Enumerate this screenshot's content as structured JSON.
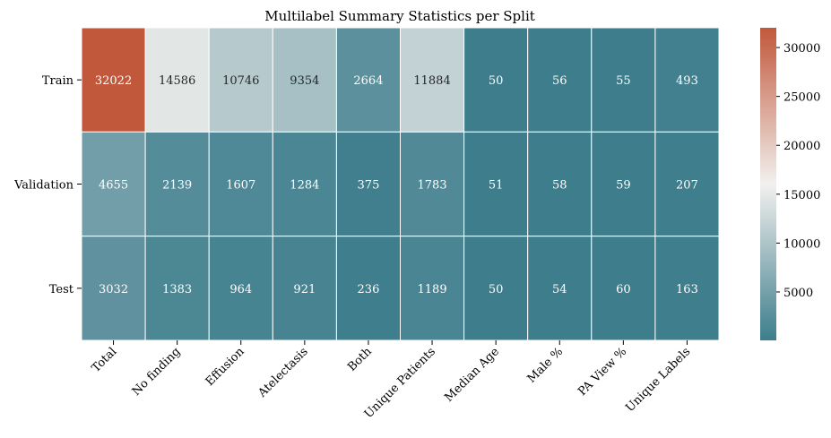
{
  "chart_data": {
    "type": "heatmap",
    "title": "Multilabel Summary Statistics per Split",
    "xlabel": "",
    "ylabel": "",
    "columns": [
      "Total",
      "No finding",
      "Effusion",
      "Atelectasis",
      "Both",
      "Unique Patients",
      "Median Age",
      "Male %",
      "PA View %",
      "Unique Labels"
    ],
    "rows": [
      "Train",
      "Validation",
      "Test"
    ],
    "values": [
      [
        32022,
        14586,
        10746,
        9354,
        2664,
        11884,
        50,
        56,
        55,
        493
      ],
      [
        4655,
        2139,
        1607,
        1284,
        375,
        1783,
        51,
        58,
        59,
        207
      ],
      [
        3032,
        1383,
        964,
        921,
        236,
        1189,
        50,
        54,
        60,
        163
      ]
    ],
    "colorbar": {
      "ticks": [
        5000,
        10000,
        15000,
        20000,
        25000,
        30000
      ],
      "vmin": 50,
      "vmax": 32022
    },
    "colormap": {
      "low": "#3d7d8c",
      "mid": "#f2f0ee",
      "high": "#c1583b"
    },
    "grid": false,
    "cell_border_color": "#ffffff"
  }
}
